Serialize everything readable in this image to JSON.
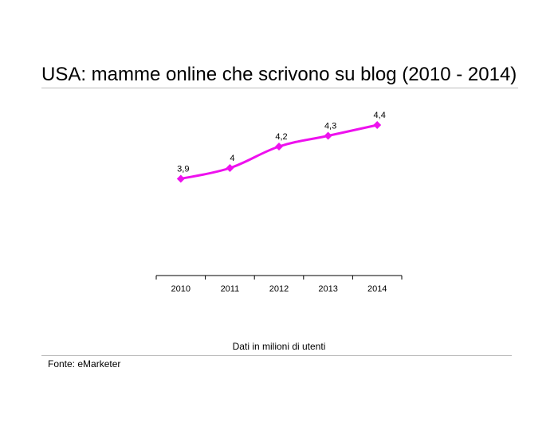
{
  "title": "USA: mamme online che scrivono su blog (2010 - 2014)",
  "chart_note": "Dati in milioni di utenti",
  "source": "Fonte: eMarketer",
  "colors": {
    "series": "#ee11ee",
    "axis": "#000000",
    "rule": "#bdbdbd"
  },
  "chart_data": {
    "type": "line",
    "title": "USA: mamme online che scrivono su blog (2010 - 2014)",
    "categories": [
      "2010",
      "2011",
      "2012",
      "2013",
      "2014"
    ],
    "series": [
      {
        "values": [
          3.9,
          4.0,
          4.2,
          4.3,
          4.4
        ],
        "labels": [
          "3,9",
          "4",
          "4,2",
          "4,3",
          "4,4"
        ]
      }
    ],
    "xlabel": "",
    "ylabel": "",
    "ylim": [
      3.0,
      4.6
    ],
    "grid": false,
    "legend": "none",
    "marker": "diamond"
  }
}
